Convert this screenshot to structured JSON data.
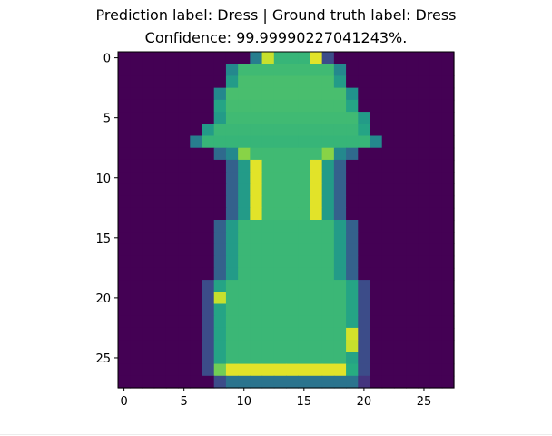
{
  "chart_data": {
    "type": "heatmap",
    "title_line1": "Prediction label: Dress  |  Ground truth label: Dress",
    "title_line2": "Confidence: 99.99990227041243%.",
    "xlabel": "",
    "ylabel": "",
    "grid": false,
    "colormap": "viridis",
    "xlim": [
      -0.5,
      27.5
    ],
    "ylim": [
      27.5,
      -0.5
    ],
    "x_ticks": [
      0,
      5,
      10,
      15,
      20,
      25
    ],
    "y_ticks": [
      0,
      5,
      10,
      15,
      20,
      25
    ],
    "x_tick_labels": [
      "0",
      "5",
      "10",
      "15",
      "20",
      "25"
    ],
    "y_tick_labels": [
      "0",
      "5",
      "10",
      "15",
      "20",
      "25"
    ],
    "prediction_label": "Dress",
    "ground_truth_label": "Dress",
    "confidence_percent": 99.99990227041243
  }
}
